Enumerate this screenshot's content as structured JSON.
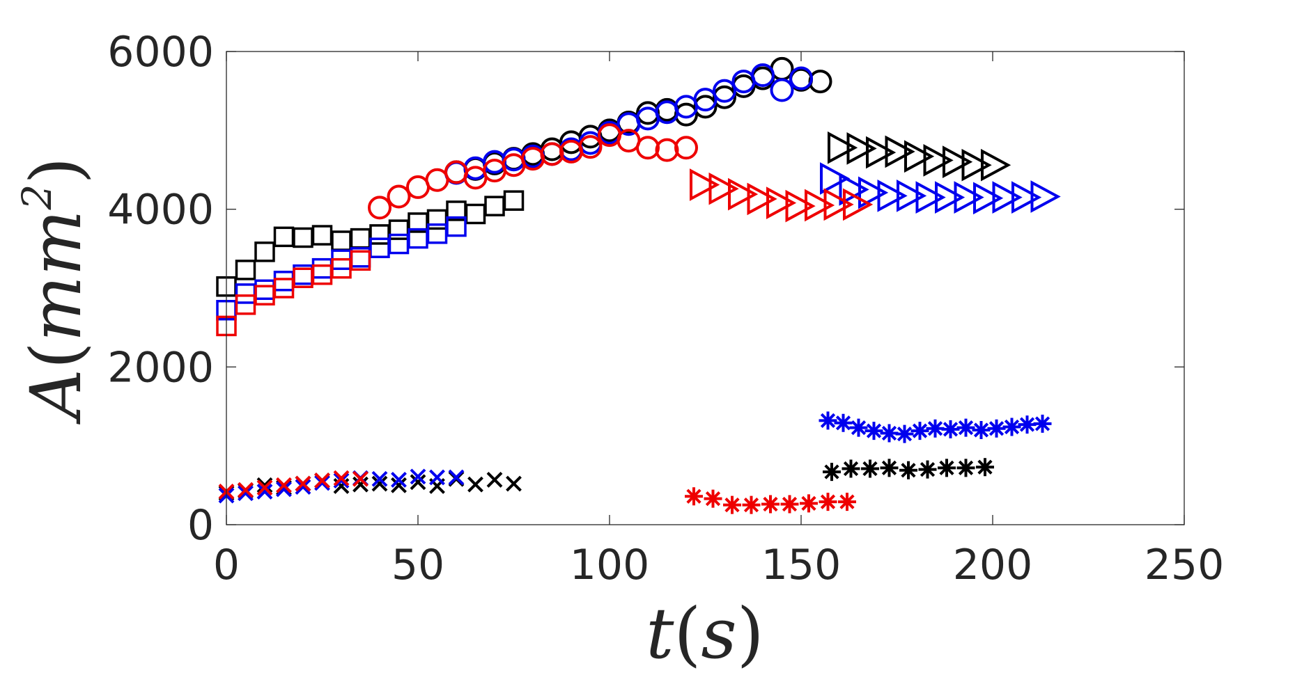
{
  "chart_data": {
    "type": "scatter",
    "title": "",
    "xlabel": "t(s)",
    "ylabel": "A(mm²)",
    "xlabel_parts": {
      "var": "t",
      "open": "(",
      "unit": "s",
      "close": ")"
    },
    "ylabel_parts": {
      "var": "A",
      "open": "(",
      "unit": "mm",
      "sup": "2",
      "close": ")"
    },
    "xlim": [
      0,
      250
    ],
    "ylim": [
      0,
      6000
    ],
    "xticks": [
      0,
      50,
      100,
      150,
      200,
      250
    ],
    "yticks": [
      0,
      2000,
      4000,
      6000
    ],
    "xtick_labels": [
      "0",
      "50",
      "100",
      "150",
      "200",
      "250"
    ],
    "ytick_labels": [
      "0",
      "2000",
      "4000",
      "6000"
    ],
    "grid": false,
    "legend": null,
    "colors": {
      "black": "#000000",
      "blue": "#0000ee",
      "red": "#ee0000",
      "axis": "#262626"
    },
    "series": [
      {
        "name": "black-square",
        "marker": "square",
        "color": "#000000",
        "x": [
          0,
          5,
          10,
          15,
          20,
          25,
          30,
          35,
          40,
          45,
          50,
          55,
          60,
          65,
          70,
          75
        ],
        "y": [
          3020,
          3230,
          3460,
          3650,
          3640,
          3670,
          3600,
          3630,
          3680,
          3740,
          3830,
          3870,
          3980,
          3940,
          4040,
          4110
        ]
      },
      {
        "name": "blue-square",
        "marker": "square",
        "color": "#0000ee",
        "x": [
          0,
          5,
          10,
          15,
          20,
          25,
          30,
          35,
          40,
          45,
          50,
          55,
          60
        ],
        "y": [
          2720,
          2930,
          2980,
          3090,
          3170,
          3250,
          3360,
          3390,
          3510,
          3560,
          3630,
          3690,
          3780
        ]
      },
      {
        "name": "red-square",
        "marker": "square",
        "color": "#ee0000",
        "x": [
          0,
          5,
          10,
          15,
          20,
          25,
          30,
          35
        ],
        "y": [
          2520,
          2790,
          2910,
          3000,
          3130,
          3170,
          3250,
          3350
        ]
      },
      {
        "name": "black-x",
        "marker": "x",
        "color": "#000000",
        "x": [
          0,
          5,
          10,
          15,
          20,
          25,
          30,
          35,
          40,
          45,
          50,
          55,
          60,
          65,
          70,
          75
        ],
        "y": [
          400,
          430,
          500,
          470,
          520,
          560,
          490,
          510,
          520,
          500,
          540,
          490,
          580,
          510,
          570,
          520
        ]
      },
      {
        "name": "blue-x",
        "marker": "x",
        "color": "#0000ee",
        "x": [
          0,
          5,
          10,
          15,
          20,
          25,
          30,
          35,
          40,
          45,
          50,
          55,
          60
        ],
        "y": [
          370,
          400,
          420,
          450,
          480,
          530,
          560,
          590,
          580,
          570,
          610,
          600,
          600
        ]
      },
      {
        "name": "red-x",
        "marker": "x",
        "color": "#ee0000",
        "x": [
          0,
          5,
          10,
          15,
          20,
          25,
          30,
          35
        ],
        "y": [
          420,
          440,
          470,
          500,
          520,
          560,
          590,
          580
        ]
      },
      {
        "name": "black-circle",
        "marker": "circle",
        "color": "#000000",
        "x": [
          60,
          65,
          70,
          75,
          80,
          85,
          90,
          95,
          100,
          105,
          110,
          115,
          120,
          125,
          130,
          135,
          140,
          145,
          150,
          155
        ],
        "y": [
          4470,
          4510,
          4580,
          4640,
          4700,
          4760,
          4850,
          4920,
          5000,
          5100,
          5220,
          5260,
          5200,
          5300,
          5420,
          5560,
          5660,
          5780,
          5640,
          5620
        ]
      },
      {
        "name": "blue-circle",
        "marker": "circle",
        "color": "#0000ee",
        "x": [
          60,
          65,
          70,
          75,
          80,
          85,
          90,
          95,
          100,
          105,
          110,
          115,
          120,
          125,
          130,
          135,
          140,
          145,
          150
        ],
        "y": [
          4460,
          4520,
          4600,
          4630,
          4670,
          4700,
          4760,
          4840,
          4970,
          5080,
          5150,
          5230,
          5300,
          5390,
          5500,
          5620,
          5700,
          5510,
          5660
        ]
      },
      {
        "name": "red-circle",
        "marker": "circle",
        "color": "#ee0000",
        "x": [
          40,
          45,
          50,
          55,
          60,
          65,
          70,
          75,
          80,
          85,
          90,
          95,
          100,
          105,
          110,
          115,
          120
        ],
        "y": [
          4020,
          4160,
          4280,
          4370,
          4470,
          4400,
          4490,
          4560,
          4640,
          4700,
          4730,
          4790,
          4940,
          4870,
          4780,
          4750,
          4780
        ]
      },
      {
        "name": "black-triangle",
        "marker": "triangle-right",
        "color": "#000000",
        "x": [
          160,
          165,
          170,
          175,
          180,
          185,
          190,
          195,
          200
        ],
        "y": [
          4780,
          4770,
          4720,
          4730,
          4670,
          4620,
          4600,
          4560,
          4560
        ]
      },
      {
        "name": "blue-triangle",
        "marker": "triangle-right",
        "color": "#0000ee",
        "x": [
          158,
          163,
          168,
          173,
          178,
          183,
          188,
          193,
          198,
          203,
          208,
          213
        ],
        "y": [
          4390,
          4250,
          4210,
          4170,
          4170,
          4150,
          4150,
          4150,
          4140,
          4150,
          4150,
          4160
        ]
      },
      {
        "name": "red-triangle",
        "marker": "triangle-right",
        "color": "#ee0000",
        "x": [
          124,
          129,
          134,
          139,
          144,
          149,
          154,
          159,
          164
        ],
        "y": [
          4310,
          4260,
          4190,
          4130,
          4080,
          4040,
          4050,
          4060,
          4060
        ]
      },
      {
        "name": "black-star",
        "marker": "asterisk",
        "color": "#000000",
        "x": [
          158,
          163,
          168,
          173,
          178,
          183,
          188,
          193,
          198
        ],
        "y": [
          670,
          710,
          710,
          720,
          690,
          700,
          720,
          720,
          730
        ]
      },
      {
        "name": "blue-star",
        "marker": "asterisk",
        "color": "#0000ee",
        "x": [
          157,
          161,
          165,
          169,
          173,
          177,
          181,
          185,
          189,
          193,
          197,
          201,
          205,
          209,
          213
        ],
        "y": [
          1320,
          1290,
          1230,
          1190,
          1160,
          1150,
          1190,
          1220,
          1210,
          1230,
          1200,
          1220,
          1240,
          1270,
          1280
        ]
      },
      {
        "name": "red-star",
        "marker": "asterisk",
        "color": "#ee0000",
        "x": [
          122,
          127,
          132,
          137,
          142,
          147,
          152,
          157,
          162
        ],
        "y": [
          360,
          330,
          250,
          250,
          260,
          260,
          270,
          290,
          290
        ]
      }
    ]
  }
}
